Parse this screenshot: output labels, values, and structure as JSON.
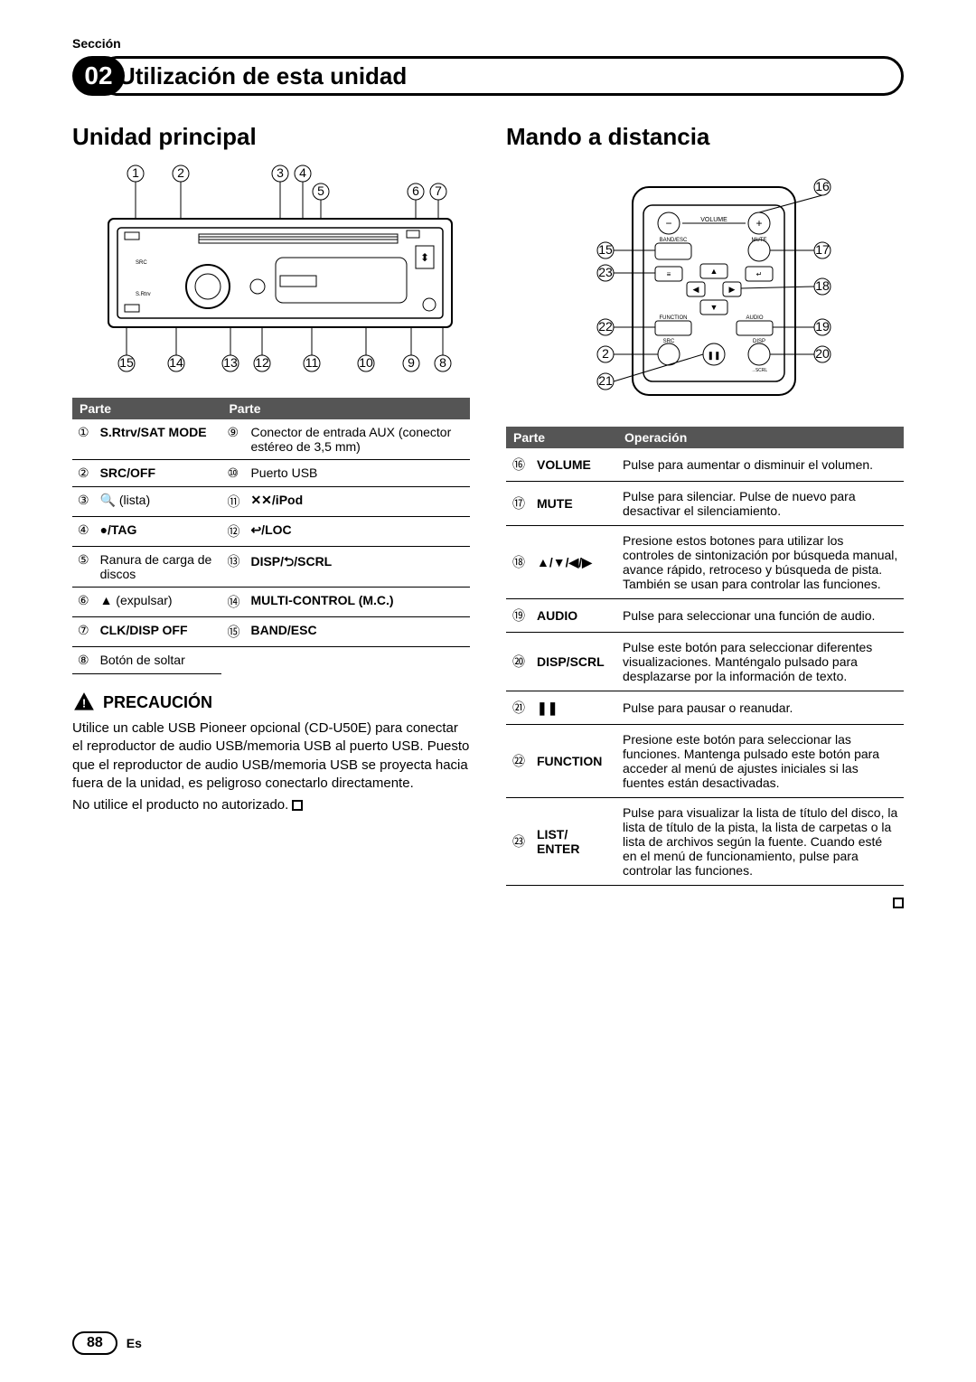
{
  "section_label": "Sección",
  "chapter_number": "02",
  "chapter_title": "Utilización de esta unidad",
  "left": {
    "heading": "Unidad principal",
    "table_header": "Parte",
    "rows_left": [
      {
        "n": "①",
        "label": "S.Rtrv/SAT MODE",
        "bold": true
      },
      {
        "n": "②",
        "label": "SRC/OFF",
        "bold": true
      },
      {
        "n": "③",
        "label": "🔍 (lista)",
        "bold": false
      },
      {
        "n": "④",
        "label": "●/TAG",
        "bold": true
      },
      {
        "n": "⑤",
        "label": "Ranura de carga de discos",
        "bold": false
      },
      {
        "n": "⑥",
        "label": "▲ (expulsar)",
        "bold": false
      },
      {
        "n": "⑦",
        "label": "CLK/DISP OFF",
        "bold": true
      },
      {
        "n": "⑧",
        "label": "Botón de soltar",
        "bold": false
      }
    ],
    "rows_right": [
      {
        "n": "⑨",
        "label": "Conector de entrada AUX (conector estéreo de 3,5 mm)",
        "bold": false
      },
      {
        "n": "⑩",
        "label": "Puerto USB",
        "bold": false
      },
      {
        "n": "⑪",
        "label": "✕✕/iPod",
        "bold": true
      },
      {
        "n": "⑫",
        "label": "↩/LOC",
        "bold": true
      },
      {
        "n": "⑬",
        "label": "DISP/⮌/SCRL",
        "bold": true
      },
      {
        "n": "⑭",
        "label": "MULTI-CONTROL (M.C.)",
        "bold": true
      },
      {
        "n": "⑮",
        "label": "BAND/ESC",
        "bold": true
      },
      {
        "n": "",
        "label": "",
        "bold": false
      }
    ],
    "caution_title": "PRECAUCIÓN",
    "caution_body": "Utilice un cable USB Pioneer opcional (CD-U50E) para conectar el reproductor de audio USB/memoria USB al puerto USB. Puesto que el reproductor de audio USB/memoria USB se proyecta hacia fuera de la unidad, es peligroso conectarlo directamente.",
    "caution_note": "No utilice el producto no autorizado."
  },
  "right": {
    "heading": "Mando a distancia",
    "th_part": "Parte",
    "th_op": "Operación",
    "ops": [
      {
        "n": "⑯",
        "name": "VOLUME",
        "desc": "Pulse para aumentar o disminuir el volumen."
      },
      {
        "n": "⑰",
        "name": "MUTE",
        "desc": "Pulse para silenciar. Pulse de nuevo para desactivar el silenciamiento."
      },
      {
        "n": "⑱",
        "name": "▲/▼/◀/▶",
        "desc": "Presione estos botones para utilizar los controles de sintonización por búsqueda manual, avance rápido, retroceso y búsqueda de pista.\nTambién se usan para controlar las funciones."
      },
      {
        "n": "⑲",
        "name": "AUDIO",
        "desc": "Pulse para seleccionar una función de audio."
      },
      {
        "n": "⑳",
        "name": "DISP/SCRL",
        "desc": "Pulse este botón para seleccionar diferentes visualizaciones.\nManténgalo pulsado para desplazarse por la información de texto."
      },
      {
        "n": "㉑",
        "name": "❚❚",
        "desc": "Pulse para pausar o reanudar."
      },
      {
        "n": "㉒",
        "name": "FUNCTION",
        "desc": "Presione este botón para seleccionar las funciones.\nMantenga pulsado este botón para acceder al menú de ajustes iniciales si las fuentes están desactivadas."
      },
      {
        "n": "㉓",
        "name": "LIST/ ENTER",
        "desc": "Pulse para visualizar la lista de título del disco, la lista de título de la pista, la lista de carpetas o la lista de archivos según la fuente. Cuando esté en el menú de funcionamiento, pulse para controlar las funciones."
      }
    ]
  },
  "page_number": "88",
  "lang": "Es",
  "colors": {
    "header_bg": "#555555",
    "border": "#000000"
  },
  "callouts_main_top": [
    "②",
    "③",
    "④",
    "①",
    "⑤",
    "⑥",
    "⑦"
  ],
  "callouts_main_bottom": [
    "⑮",
    "⑭",
    "⑬",
    "⑫",
    "⑪",
    "⑩",
    "⑨",
    "⑧"
  ],
  "callouts_remote_left": [
    "⑮",
    "㉓",
    "㉒",
    "②",
    "㉑"
  ],
  "callouts_remote_right": [
    "⑯",
    "⑰",
    "⑱",
    "⑲",
    "⑳"
  ]
}
